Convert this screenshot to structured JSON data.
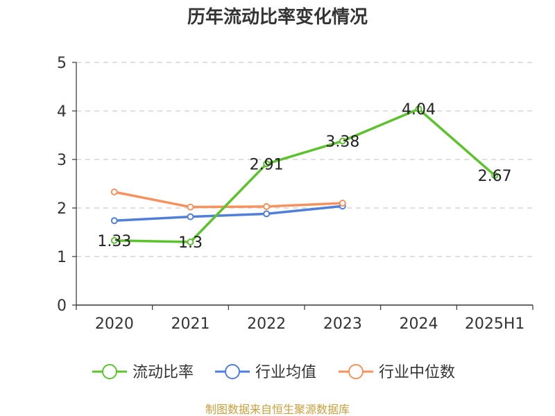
{
  "chart_data": {
    "type": "line",
    "title": "历年流动比率变化情况",
    "categories": [
      "2020",
      "2021",
      "2022",
      "2023",
      "2024",
      "2025H1"
    ],
    "ylim": [
      0,
      5
    ],
    "yticks": [
      0,
      1,
      2,
      3,
      4,
      5
    ],
    "grid": true,
    "legend_position": "bottom",
    "series": [
      {
        "name": "流动比率",
        "color": "#5cc22d",
        "values": [
          1.33,
          1.3,
          2.91,
          3.38,
          4.04,
          2.67
        ],
        "labels": [
          "1.33",
          "1.3",
          "2.91",
          "3.38",
          "4.04",
          "2.67"
        ]
      },
      {
        "name": "行业均值",
        "color": "#4f7fd9",
        "values": [
          1.74,
          1.82,
          1.88,
          2.04,
          null,
          null
        ]
      },
      {
        "name": "行业中位数",
        "color": "#f5925e",
        "values": [
          2.33,
          2.02,
          2.03,
          2.1,
          null,
          null
        ]
      }
    ],
    "source": "制图数据来自恒生聚源数据库"
  }
}
